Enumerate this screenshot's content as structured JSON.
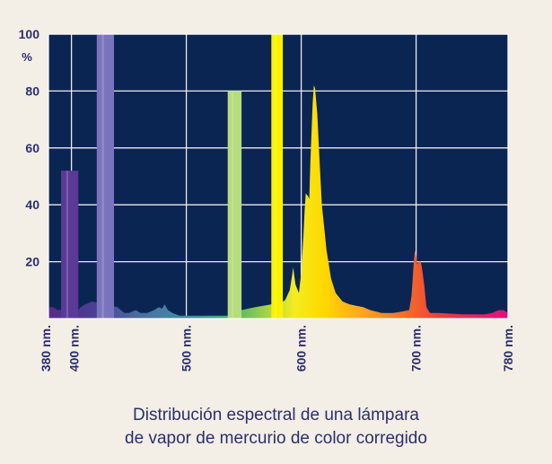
{
  "chart_data": {
    "type": "area",
    "title": "",
    "caption_lines": [
      "Distribución espectral de una lámpara",
      "de vapor de mercurio de color corregido"
    ],
    "xlabel": "",
    "ylabel": "%",
    "xlim": [
      380,
      780
    ],
    "ylim": [
      0,
      100
    ],
    "y_ticks": [
      "20",
      "40",
      "60",
      "80",
      "100"
    ],
    "x_ticks": [
      {
        "x": 380,
        "label": "380 nm."
      },
      {
        "x": 400,
        "label": "400 nm."
      },
      {
        "x": 500,
        "label": "500 nm."
      },
      {
        "x": 600,
        "label": "600 nm."
      },
      {
        "x": 700,
        "label": "700 nm."
      },
      {
        "x": 780,
        "label": "780 nm."
      }
    ],
    "grid": true,
    "background_color": "#0b2553",
    "grid_color": "#e8ecf2",
    "bands": [
      {
        "x0": 391,
        "x1": 406,
        "value": 52,
        "color": "#5a3a96"
      },
      {
        "x0": 422,
        "x1": 437,
        "value": 100,
        "color": "#7a74be"
      },
      {
        "x0": 536,
        "x1": 548,
        "value": 80,
        "color": "#b6dc80"
      },
      {
        "x0": 574,
        "x1": 584,
        "value": 100,
        "color": "#fbf200"
      }
    ],
    "series": [
      {
        "points": [
          [
            380,
            4
          ],
          [
            384,
            4
          ],
          [
            388,
            3
          ],
          [
            392,
            3
          ],
          [
            406,
            3
          ],
          [
            408,
            4
          ],
          [
            412,
            5
          ],
          [
            418,
            6
          ],
          [
            430,
            5
          ],
          [
            440,
            4
          ],
          [
            446,
            2
          ],
          [
            450,
            2
          ],
          [
            456,
            3
          ],
          [
            460,
            2
          ],
          [
            466,
            2
          ],
          [
            472,
            3
          ],
          [
            476,
            4
          ],
          [
            479,
            3.5
          ],
          [
            481,
            5
          ],
          [
            484,
            3
          ],
          [
            488,
            2
          ],
          [
            494,
            1
          ],
          [
            500,
            1
          ],
          [
            530,
            1
          ],
          [
            536,
            1
          ],
          [
            548,
            3
          ],
          [
            560,
            4
          ],
          [
            574,
            5
          ],
          [
            584,
            6
          ],
          [
            586,
            6.5
          ],
          [
            590,
            10
          ],
          [
            592,
            15
          ],
          [
            593,
            18
          ],
          [
            595,
            12
          ],
          [
            598,
            9
          ],
          [
            600,
            16
          ],
          [
            602,
            30
          ],
          [
            603,
            38
          ],
          [
            604,
            44
          ],
          [
            606,
            43
          ],
          [
            607,
            42
          ],
          [
            608,
            55
          ],
          [
            610,
            76
          ],
          [
            611,
            82
          ],
          [
            612,
            81
          ],
          [
            614,
            72
          ],
          [
            616,
            55
          ],
          [
            618,
            40
          ],
          [
            622,
            24
          ],
          [
            626,
            14
          ],
          [
            630,
            9
          ],
          [
            636,
            6
          ],
          [
            642,
            5
          ],
          [
            648,
            4.5
          ],
          [
            654,
            4
          ],
          [
            660,
            3
          ],
          [
            670,
            2
          ],
          [
            680,
            2
          ],
          [
            688,
            2.5
          ],
          [
            694,
            3
          ],
          [
            696,
            8
          ],
          [
            697,
            14
          ],
          [
            698,
            20
          ],
          [
            699,
            24
          ],
          [
            700,
            22
          ],
          [
            701,
            19
          ],
          [
            702,
            20
          ],
          [
            704,
            20
          ],
          [
            705,
            18
          ],
          [
            707,
            12
          ],
          [
            709,
            4
          ],
          [
            712,
            2
          ],
          [
            720,
            2
          ],
          [
            740,
            1.5
          ],
          [
            760,
            1.5
          ],
          [
            766,
            2
          ],
          [
            772,
            3
          ],
          [
            776,
            3
          ],
          [
            780,
            2
          ]
        ]
      }
    ]
  }
}
